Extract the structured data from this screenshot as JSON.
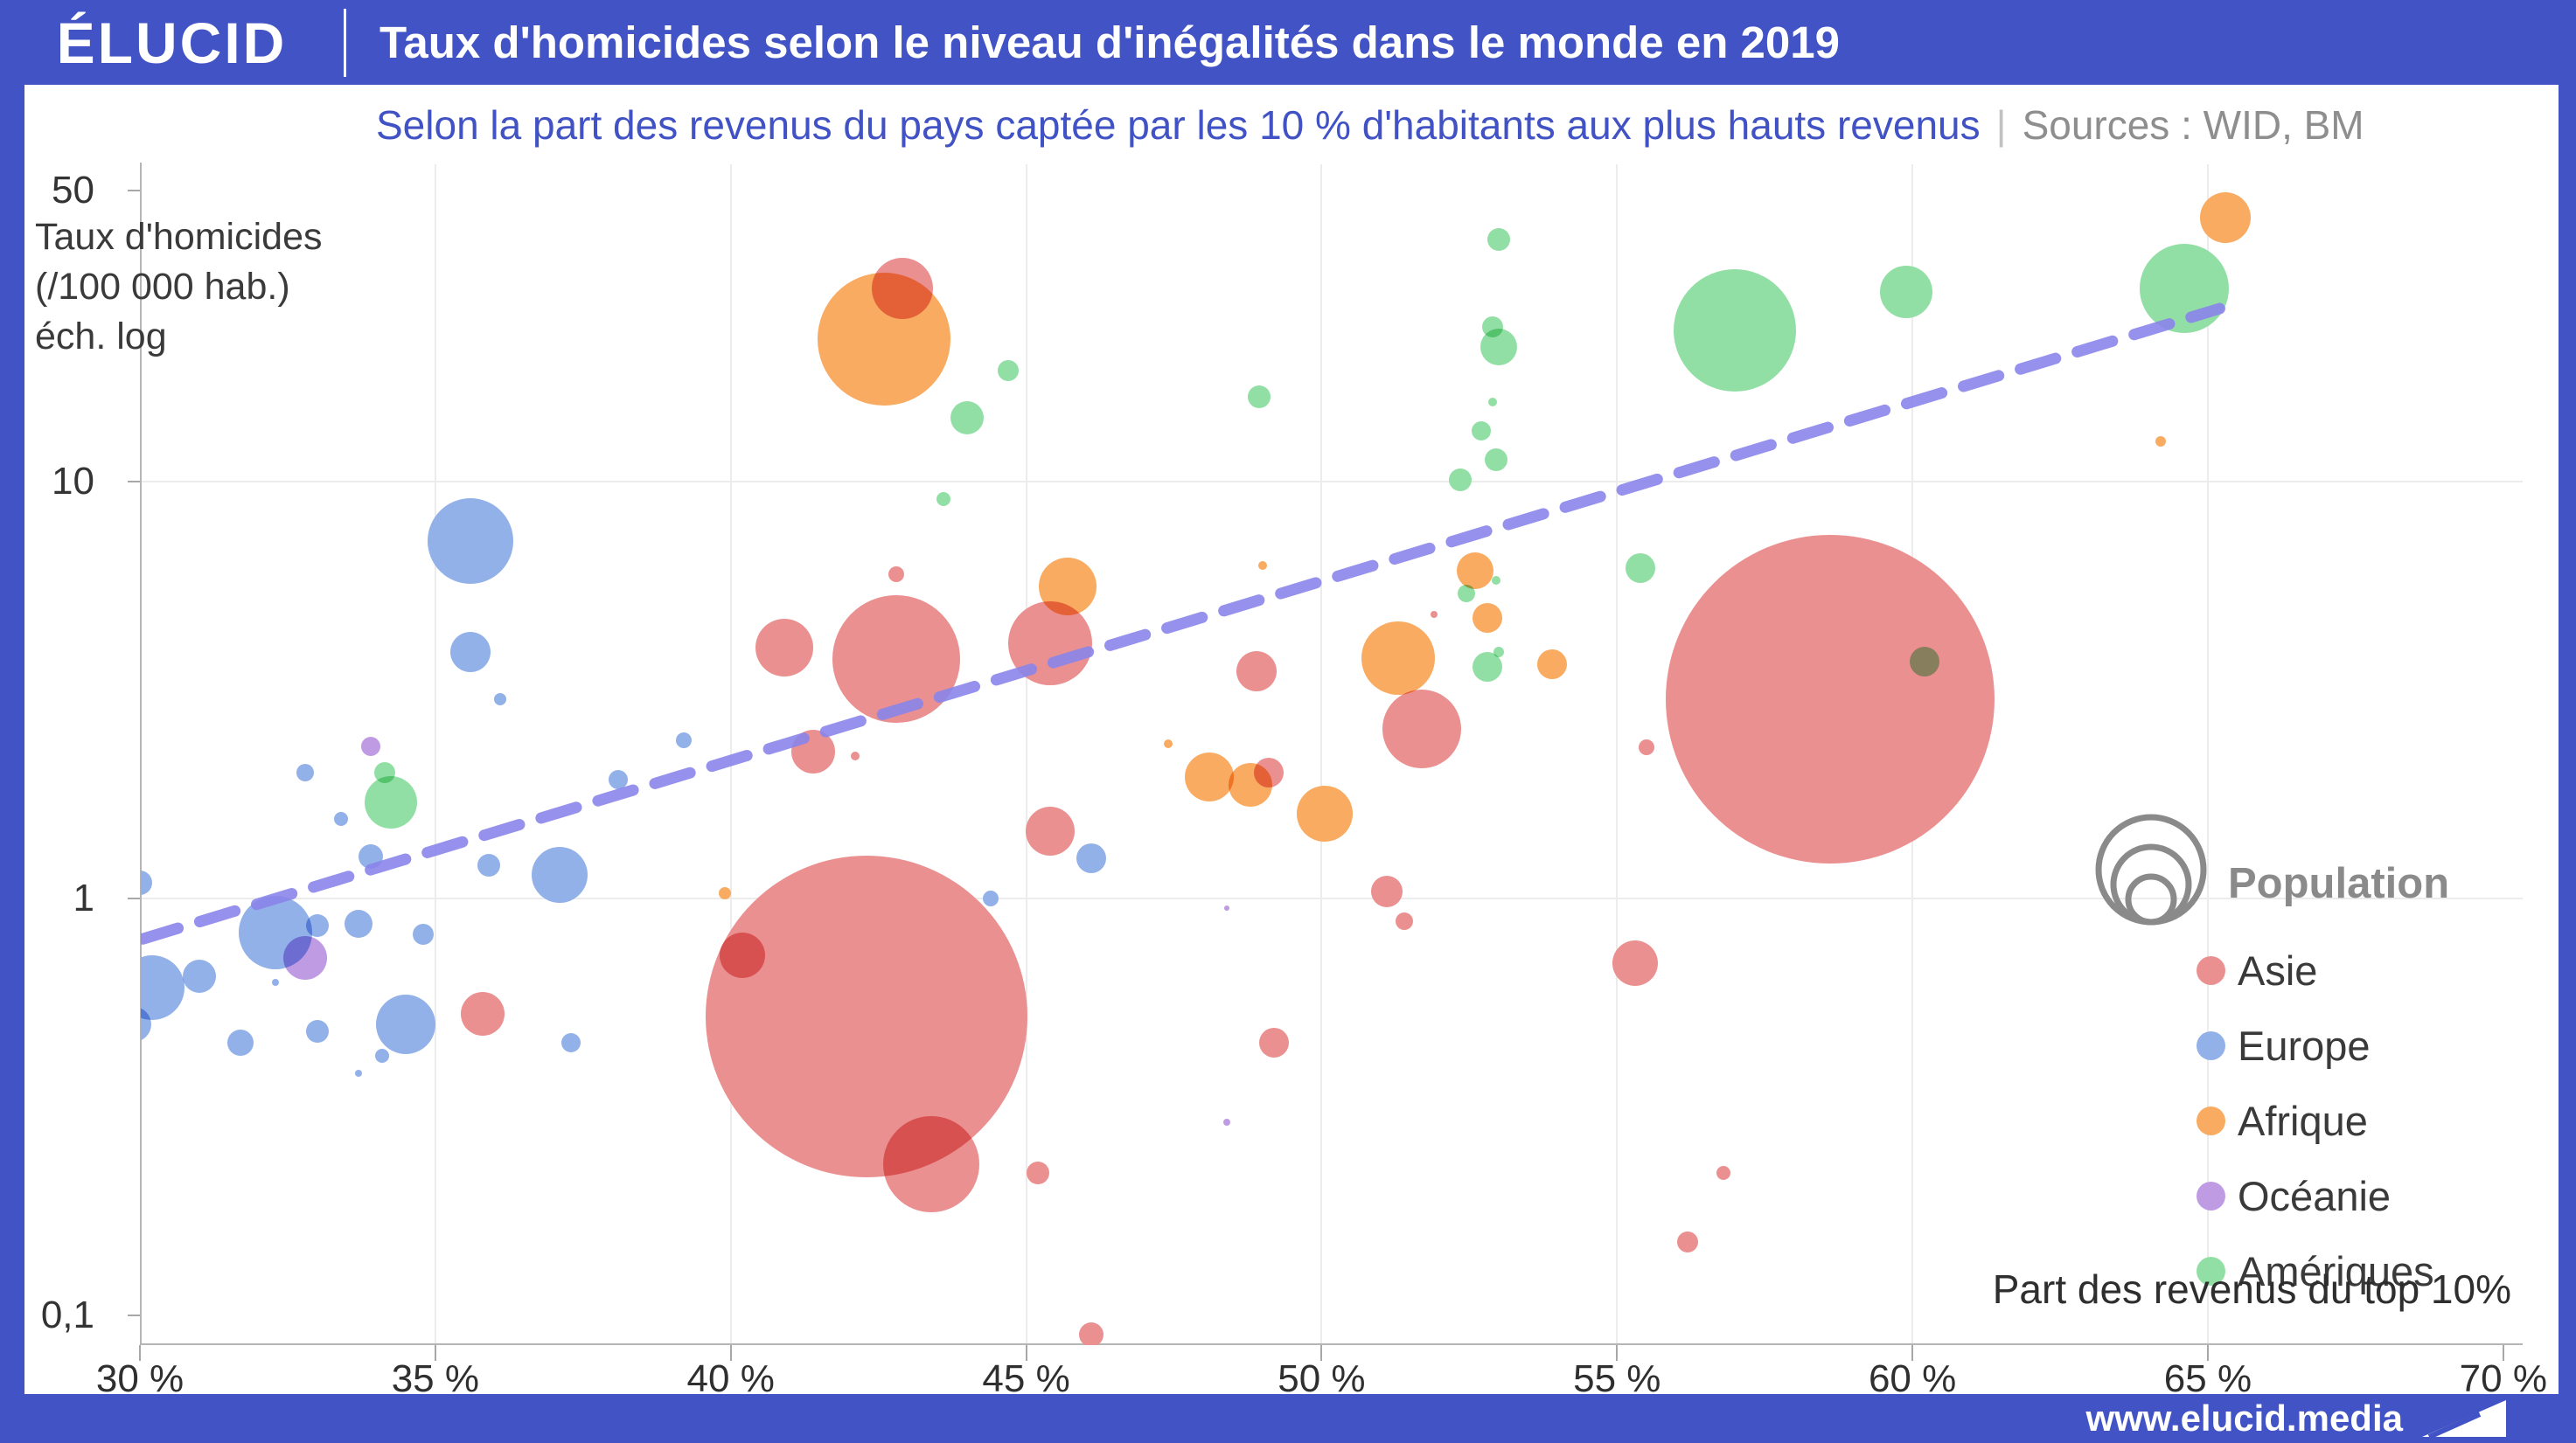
{
  "header": {
    "logo": "ÉLUCID",
    "title": "Taux d'homicides selon le niveau d'inégalités dans le monde en 2019"
  },
  "subtitle": {
    "text": "Selon la part des revenus du pays captée par les 10 % d'habitants aux plus hauts revenus",
    "separator": "|",
    "sources": "Sources : WID, BM"
  },
  "footer": {
    "url": "www.elucid.media"
  },
  "colors": {
    "frame_blue": "#4254c5",
    "subtitle_blue": "#4152c5",
    "grid": "#ececec",
    "axis_line": "#b5b5b5",
    "trend": "#8a85ea",
    "legend_title_gray": "#8a8a8a"
  },
  "chart_data": {
    "type": "scatter",
    "subtype": "bubble",
    "title": "Taux d'homicides selon le niveau d'inégalités dans le monde en 2019",
    "subtitle": "Selon la part des revenus du pays captée par les 10 % d'habitants aux plus hauts revenus",
    "sources": "Sources : WID, BM",
    "x_axis": {
      "label": "Part des revenus du top 10%",
      "scale": "linear",
      "range": [
        30,
        70
      ],
      "ticks": [
        {
          "value": 30,
          "label": "30 %"
        },
        {
          "value": 35,
          "label": "35 %"
        },
        {
          "value": 40,
          "label": "40 %"
        },
        {
          "value": 45,
          "label": "45 %"
        },
        {
          "value": 50,
          "label": "50 %"
        },
        {
          "value": 55,
          "label": "55 %"
        },
        {
          "value": 60,
          "label": "60 %"
        },
        {
          "value": 65,
          "label": "65 %"
        },
        {
          "value": 70,
          "label": "70 %"
        }
      ],
      "gridlines": [
        35,
        40,
        45,
        50,
        55,
        60,
        65
      ]
    },
    "y_axis": {
      "label_lines": [
        "Taux d'homicides",
        "(/100 000 hab.)",
        "éch. log"
      ],
      "scale": "log",
      "range": [
        0.085,
        58
      ],
      "ticks": [
        {
          "value": 50,
          "label": "50"
        },
        {
          "value": 10,
          "label": "10"
        },
        {
          "value": 1,
          "label": "1"
        },
        {
          "value": 0.1,
          "label": "0,1"
        }
      ],
      "gridlines": [
        10,
        1
      ]
    },
    "legend": {
      "title": "Population",
      "size_icon": "nested-circles",
      "items": [
        {
          "label": "Asie",
          "color": "#eb9090"
        },
        {
          "label": "Europe",
          "color": "#92b1e9"
        },
        {
          "label": "Afrique",
          "color": "#f8ab61"
        },
        {
          "label": "Océanie",
          "color": "#bf9be4"
        },
        {
          "label": "Amériques",
          "color": "#92dfa5"
        }
      ]
    },
    "trendline": {
      "style": "dashed",
      "color": "#8a85ea",
      "x1": 30.05,
      "y1": 0.8,
      "x2": 65.2,
      "y2": 26
    },
    "point_format": "[top10_income_share_pct, homicide_rate_per_100k, bubble_radius_px_population]",
    "series": [
      {
        "name": "Asie",
        "color": "#eb9090",
        "points": [
          [
            42.3,
            0.52,
            184
          ],
          [
            58.6,
            3.0,
            188
          ],
          [
            42.8,
            3.75,
            73
          ],
          [
            43.4,
            0.23,
            55
          ],
          [
            45.4,
            4.1,
            48
          ],
          [
            51.7,
            2.55,
            45
          ],
          [
            42.9,
            29,
            35
          ],
          [
            40.9,
            4.0,
            33
          ],
          [
            45.4,
            1.45,
            28
          ],
          [
            41.4,
            2.25,
            25
          ],
          [
            35.8,
            0.53,
            25
          ],
          [
            40.2,
            0.73,
            26
          ],
          [
            48.9,
            3.5,
            23
          ],
          [
            49.1,
            2.0,
            17
          ],
          [
            49.2,
            0.45,
            17
          ],
          [
            51.1,
            1.04,
            18
          ],
          [
            51.4,
            0.88,
            10
          ],
          [
            55.3,
            0.7,
            26
          ],
          [
            56.2,
            0.15,
            12
          ],
          [
            56.8,
            0.22,
            8
          ],
          [
            55.5,
            2.3,
            9
          ],
          [
            45.2,
            0.22,
            13
          ],
          [
            46.1,
            0.09,
            14
          ],
          [
            42.1,
            2.2,
            5
          ],
          [
            42.8,
            6.0,
            9
          ],
          [
            51.9,
            4.8,
            4
          ]
        ]
      },
      {
        "name": "Europe",
        "color": "#92b1e9",
        "points": [
          [
            30.0,
            1.09,
            14
          ],
          [
            30.2,
            0.61,
            37
          ],
          [
            29.9,
            0.5,
            20
          ],
          [
            31.0,
            0.65,
            19
          ],
          [
            31.7,
            0.45,
            15
          ],
          [
            32.3,
            0.83,
            42
          ],
          [
            33.0,
            0.86,
            13
          ],
          [
            32.3,
            0.63,
            4
          ],
          [
            33.0,
            0.48,
            13
          ],
          [
            34.5,
            0.5,
            34
          ],
          [
            34.1,
            0.42,
            8
          ],
          [
            33.7,
            0.38,
            4
          ],
          [
            34.8,
            0.82,
            12
          ],
          [
            32.8,
            2.0,
            10
          ],
          [
            33.4,
            1.55,
            8
          ],
          [
            33.9,
            1.26,
            14
          ],
          [
            33.7,
            0.87,
            16
          ],
          [
            35.6,
            7.2,
            49
          ],
          [
            35.6,
            3.9,
            23
          ],
          [
            36.1,
            3.0,
            7
          ],
          [
            35.9,
            1.2,
            13
          ],
          [
            37.1,
            1.14,
            32
          ],
          [
            37.3,
            0.45,
            11
          ],
          [
            38.1,
            1.93,
            11
          ],
          [
            39.2,
            2.4,
            9
          ],
          [
            44.4,
            1.0,
            9
          ],
          [
            46.1,
            1.25,
            17
          ]
        ]
      },
      {
        "name": "Afrique",
        "color": "#f8ab61",
        "points": [
          [
            42.6,
            22,
            76
          ],
          [
            45.7,
            5.6,
            33
          ],
          [
            51.3,
            3.78,
            42
          ],
          [
            52.6,
            6.1,
            21
          ],
          [
            52.8,
            4.7,
            17
          ],
          [
            53.9,
            3.65,
            17
          ],
          [
            48.1,
            1.96,
            28
          ],
          [
            48.8,
            1.87,
            25
          ],
          [
            50.05,
            1.6,
            32
          ],
          [
            65.3,
            43,
            29
          ],
          [
            39.9,
            1.03,
            7
          ],
          [
            64.2,
            12.5,
            6
          ],
          [
            47.4,
            2.35,
            5
          ],
          [
            49.0,
            6.3,
            5
          ]
        ]
      },
      {
        "name": "Océanie",
        "color": "#bf9be4",
        "points": [
          [
            32.8,
            0.72,
            25
          ],
          [
            33.9,
            2.32,
            11
          ],
          [
            48.4,
            0.95,
            3
          ],
          [
            48.4,
            0.29,
            4
          ]
        ]
      },
      {
        "name": "Amériques",
        "color": "#92dfa5",
        "points": [
          [
            34.25,
            1.7,
            30
          ],
          [
            34.15,
            2.0,
            12
          ],
          [
            44.7,
            18.5,
            12
          ],
          [
            44.0,
            14.2,
            19
          ],
          [
            43.6,
            9.1,
            8
          ],
          [
            48.95,
            16,
            13
          ],
          [
            53.0,
            38,
            13
          ],
          [
            53.0,
            21,
            21
          ],
          [
            52.9,
            23.5,
            12
          ],
          [
            52.9,
            15.5,
            5
          ],
          [
            52.7,
            13.2,
            11
          ],
          [
            52.95,
            11.3,
            13
          ],
          [
            52.35,
            10.1,
            13
          ],
          [
            52.45,
            5.4,
            10
          ],
          [
            52.95,
            5.8,
            5
          ],
          [
            52.8,
            3.6,
            17
          ],
          [
            53.0,
            3.9,
            6
          ],
          [
            55.4,
            6.2,
            17
          ],
          [
            57.0,
            23,
            70
          ],
          [
            59.9,
            28.5,
            30
          ],
          [
            60.2,
            3.7,
            17
          ],
          [
            64.6,
            29,
            51
          ]
        ]
      }
    ],
    "layout_hints": {
      "grid": true,
      "legend_position": "right-inside",
      "bubble_blend": "multiply"
    }
  }
}
